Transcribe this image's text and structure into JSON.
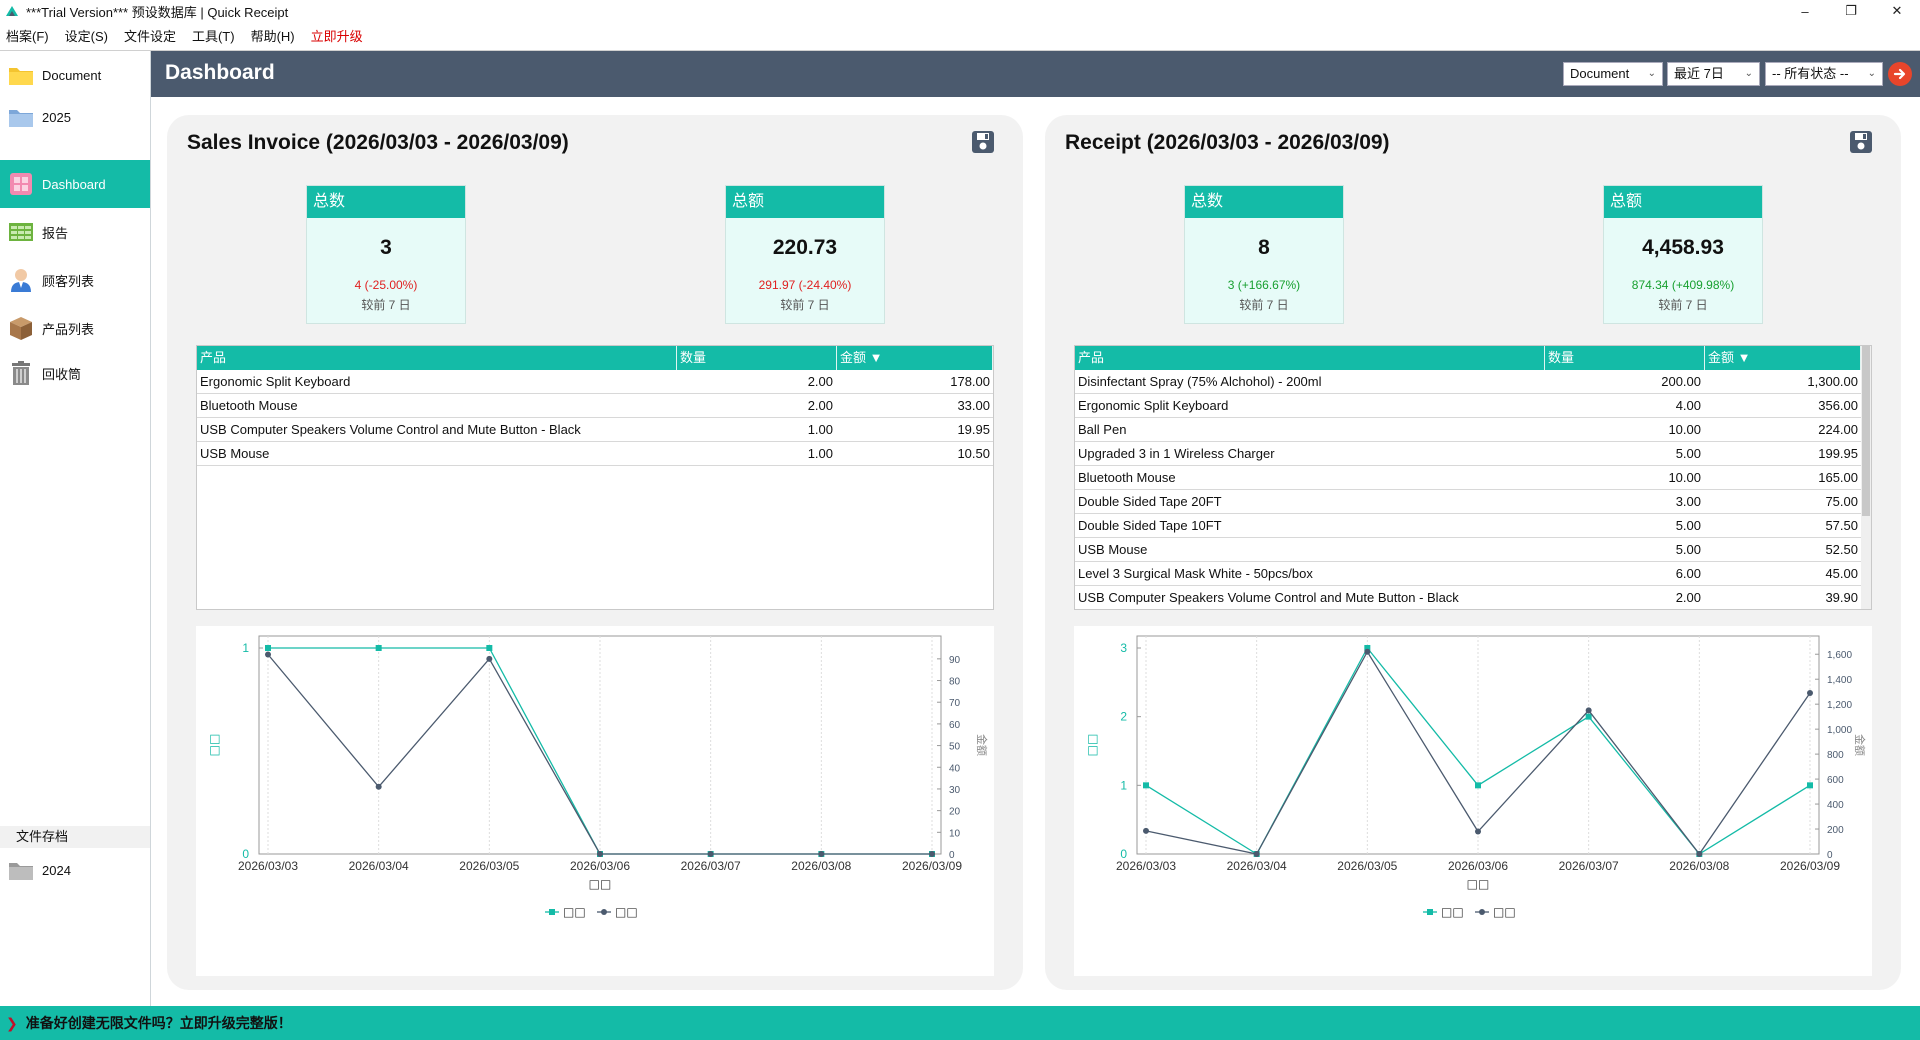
{
  "window": {
    "title": "***Trial Version*** 预设数据库 | Quick Receipt",
    "minimize": "–",
    "restore": "❐",
    "close": "✕"
  },
  "menu": [
    "档案(F)",
    "设定(S)",
    "文件设定",
    "工具(T)",
    "帮助(H)"
  ],
  "menu_upgrade": "立即升级",
  "sidebar": {
    "items": [
      {
        "label": "Document",
        "icon": "folder-yellow-icon"
      },
      {
        "label": "2025",
        "icon": "folder-blue-icon"
      },
      {
        "label": "Dashboard",
        "icon": "dashboard-icon"
      },
      {
        "label": "报告",
        "icon": "report-icon"
      },
      {
        "label": "顾客列表",
        "icon": "customer-icon"
      },
      {
        "label": "产品列表",
        "icon": "product-box-icon"
      },
      {
        "label": "回收筒",
        "icon": "recycle-bin-icon"
      }
    ],
    "archive_header": "文件存档",
    "archive_item": "2024"
  },
  "header": {
    "title": "Dashboard",
    "doc_select": "Document",
    "period_select": "最近 7日",
    "status_select": "-- 所有状态 --"
  },
  "invoice": {
    "title": "Sales Invoice (2026/03/03 - 2026/03/09)",
    "kpi_count": {
      "label": "总数",
      "value": "3",
      "change": "4 (-25.00%)",
      "compare": "较前 7 日"
    },
    "kpi_amount": {
      "label": "总额",
      "value": "220.73",
      "change": "291.97 (-24.40%)",
      "compare": "较前 7 日"
    },
    "table": {
      "headers": [
        "产品",
        "数量",
        "金额 ▼"
      ],
      "rows": [
        [
          "Ergonomic Split Keyboard",
          "2.00",
          "178.00"
        ],
        [
          "Bluetooth Mouse",
          "2.00",
          "33.00"
        ],
        [
          "USB Computer Speakers Volume Control and Mute Button - Black",
          "1.00",
          "19.95"
        ],
        [
          "USB Mouse",
          "1.00",
          "10.50"
        ]
      ]
    }
  },
  "receipt": {
    "title": "Receipt (2026/03/03 - 2026/03/09)",
    "kpi_count": {
      "label": "总数",
      "value": "8",
      "change": "3 (+166.67%)",
      "compare": "较前 7 日"
    },
    "kpi_amount": {
      "label": "总额",
      "value": "4,458.93",
      "change": "874.34 (+409.98%)",
      "compare": "较前 7 日"
    },
    "table": {
      "headers": [
        "产品",
        "数量",
        "金额 ▼"
      ],
      "rows": [
        [
          "Disinfectant Spray (75% Alchohol) - 200ml",
          "200.00",
          "1,300.00"
        ],
        [
          "Ergonomic Split Keyboard",
          "4.00",
          "356.00"
        ],
        [
          "Ball Pen",
          "10.00",
          "224.00"
        ],
        [
          "Upgraded 3 in 1 Wireless Charger",
          "5.00",
          "199.95"
        ],
        [
          "Bluetooth Mouse",
          "10.00",
          "165.00"
        ],
        [
          "Double Sided Tape 20FT",
          "3.00",
          "75.00"
        ],
        [
          "Double Sided Tape 10FT",
          "5.00",
          "57.50"
        ],
        [
          "USB Mouse",
          "5.00",
          "52.50"
        ],
        [
          "Level 3 Surgical Mask White - 50pcs/box",
          "6.00",
          "45.00"
        ],
        [
          "USB Computer Speakers Volume Control and Mute Button - Black",
          "2.00",
          "39.90"
        ]
      ]
    }
  },
  "chart_data": [
    {
      "type": "line",
      "x": [
        "2026/03/03",
        "2026/03/04",
        "2026/03/05",
        "2026/03/06",
        "2026/03/07",
        "2026/03/08",
        "2026/03/09"
      ],
      "xlabel": "□□",
      "ylabel": "□□",
      "y2label": "金额",
      "ylim": [
        0,
        1
      ],
      "y2lim": [
        0,
        95
      ],
      "yticks": [
        "0",
        "1"
      ],
      "y2ticks": [
        "0",
        "10",
        "20",
        "30",
        "40",
        "50",
        "60",
        "70",
        "80",
        "90"
      ],
      "legend": [
        "□□",
        "□□"
      ],
      "series": [
        {
          "axis": "left",
          "color": "#14bba7",
          "marker": "square",
          "values": [
            1,
            1,
            1,
            0,
            0,
            0,
            0
          ]
        },
        {
          "axis": "right",
          "color": "#4b5a6e",
          "marker": "circle",
          "values": [
            92,
            31,
            90,
            0,
            0,
            0,
            0
          ]
        }
      ]
    },
    {
      "type": "line",
      "x": [
        "2026/03/03",
        "2026/03/04",
        "2026/03/05",
        "2026/03/06",
        "2026/03/07",
        "2026/03/08",
        "2026/03/09"
      ],
      "xlabel": "□□",
      "ylabel": "□□",
      "y2label": "金额",
      "ylim": [
        0,
        3
      ],
      "y2lim": [
        0,
        1650
      ],
      "yticks": [
        "0",
        "1",
        "2",
        "3"
      ],
      "y2ticks": [
        "0",
        "200",
        "400",
        "600",
        "800",
        "1,000",
        "1,200",
        "1,400",
        "1,600"
      ],
      "legend": [
        "□□",
        "□□"
      ],
      "series": [
        {
          "axis": "left",
          "color": "#14bba7",
          "marker": "square",
          "values": [
            1,
            0,
            3,
            1,
            2,
            0,
            1
          ]
        },
        {
          "axis": "right",
          "color": "#4b5a6e",
          "marker": "circle",
          "values": [
            185,
            0,
            1620,
            180,
            1150,
            0,
            1290
          ]
        }
      ]
    }
  ],
  "statusbar": {
    "message": "准备好创建无限文件吗？立即升级完整版！"
  },
  "colors": {
    "accent": "#14bba7",
    "header_bg": "#4b5a6e",
    "negative": "#e02020",
    "positive": "#18a030",
    "go_button": "#e8452b"
  }
}
